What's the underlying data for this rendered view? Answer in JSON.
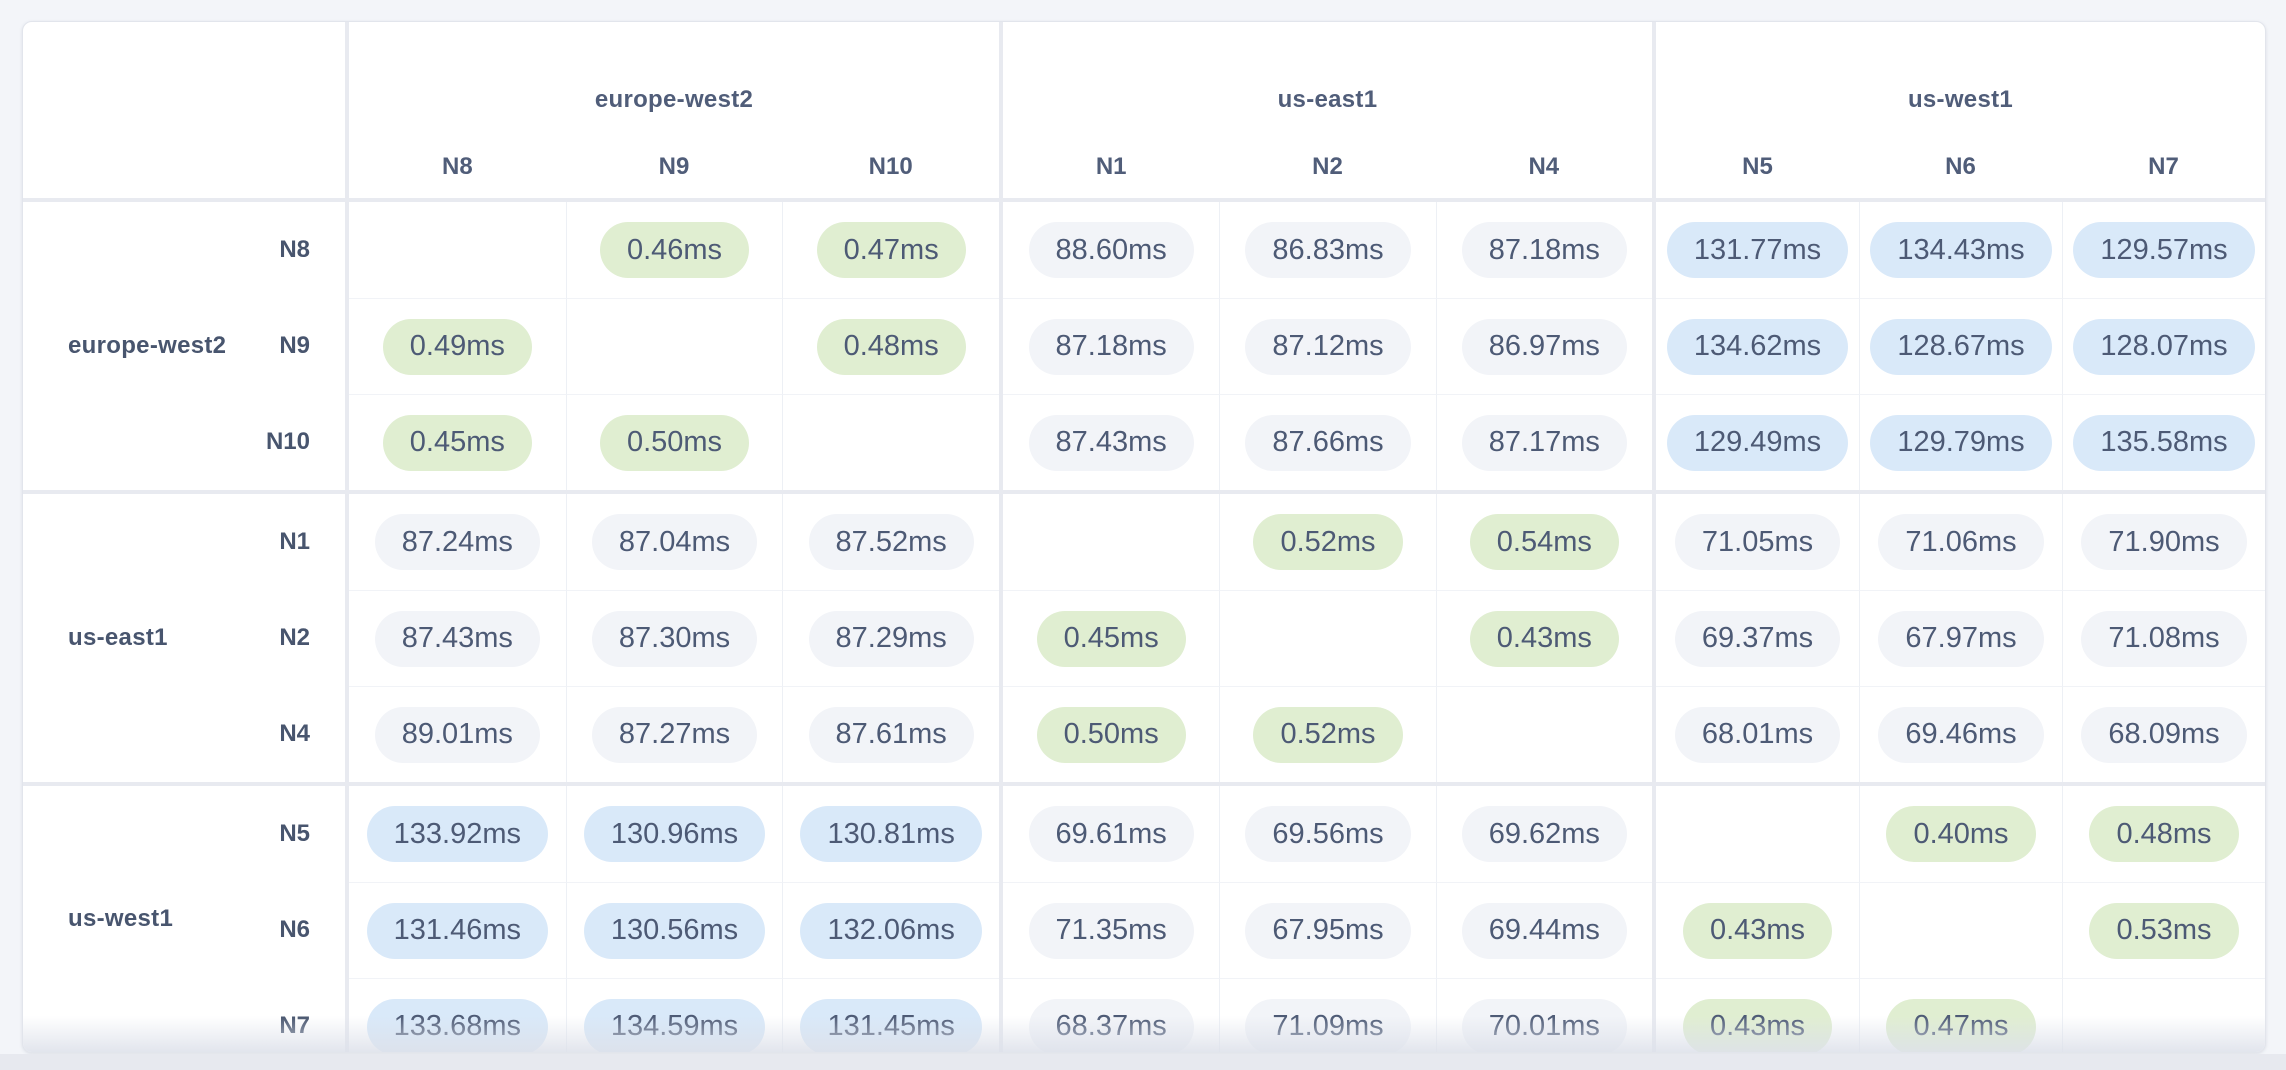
{
  "page": {
    "background": "#f3f5f9"
  },
  "chart_data": {
    "type": "heatmap",
    "unit": "ms",
    "col_groups": [
      {
        "region": "europe-west2",
        "nodes": [
          "N8",
          "N9",
          "N10"
        ]
      },
      {
        "region": "us-east1",
        "nodes": [
          "N1",
          "N2",
          "N4"
        ]
      },
      {
        "region": "us-west1",
        "nodes": [
          "N5",
          "N6",
          "N7"
        ]
      }
    ],
    "row_groups": [
      {
        "region": "europe-west2",
        "nodes": [
          "N8",
          "N9",
          "N10"
        ]
      },
      {
        "region": "us-east1",
        "nodes": [
          "N1",
          "N2",
          "N4"
        ]
      },
      {
        "region": "us-west1",
        "nodes": [
          "N5",
          "N6",
          "N7"
        ]
      }
    ],
    "row_nodes": [
      "N8",
      "N9",
      "N10",
      "N1",
      "N2",
      "N4",
      "N5",
      "N6",
      "N7"
    ],
    "col_nodes": [
      "N8",
      "N9",
      "N10",
      "N1",
      "N2",
      "N4",
      "N5",
      "N6",
      "N7"
    ],
    "values_ms": [
      [
        null,
        0.46,
        0.47,
        88.6,
        86.83,
        87.18,
        131.77,
        134.43,
        129.57
      ],
      [
        0.49,
        null,
        0.48,
        87.18,
        87.12,
        86.97,
        134.62,
        128.67,
        128.07
      ],
      [
        0.45,
        0.5,
        null,
        87.43,
        87.66,
        87.17,
        129.49,
        129.79,
        135.58
      ],
      [
        87.24,
        87.04,
        87.52,
        null,
        0.52,
        0.54,
        71.05,
        71.06,
        71.9
      ],
      [
        87.43,
        87.3,
        87.29,
        0.45,
        null,
        0.43,
        69.37,
        67.97,
        71.08
      ],
      [
        89.01,
        87.27,
        87.61,
        0.5,
        0.52,
        null,
        68.01,
        69.46,
        68.09
      ],
      [
        133.92,
        130.96,
        130.81,
        69.61,
        69.56,
        69.62,
        null,
        0.4,
        0.48
      ],
      [
        131.46,
        130.56,
        132.06,
        71.35,
        67.95,
        69.44,
        0.43,
        null,
        0.53
      ],
      [
        133.68,
        134.59,
        131.45,
        68.37,
        71.09,
        70.01,
        0.43,
        0.47,
        null
      ]
    ],
    "display": [
      [
        "",
        "0.46ms",
        "0.47ms",
        "88.60ms",
        "86.83ms",
        "87.18ms",
        "131.77ms",
        "134.43ms",
        "129.57ms"
      ],
      [
        "0.49ms",
        "",
        "0.48ms",
        "87.18ms",
        "87.12ms",
        "86.97ms",
        "134.62ms",
        "128.67ms",
        "128.07ms"
      ],
      [
        "0.45ms",
        "0.50ms",
        "",
        "87.43ms",
        "87.66ms",
        "87.17ms",
        "129.49ms",
        "129.79ms",
        "135.58ms"
      ],
      [
        "87.24ms",
        "87.04ms",
        "87.52ms",
        "",
        "0.52ms",
        "0.54ms",
        "71.05ms",
        "71.06ms",
        "71.90ms"
      ],
      [
        "87.43ms",
        "87.30ms",
        "87.29ms",
        "0.45ms",
        "",
        "0.43ms",
        "69.37ms",
        "67.97ms",
        "71.08ms"
      ],
      [
        "89.01ms",
        "87.27ms",
        "87.61ms",
        "0.50ms",
        "0.52ms",
        "",
        "68.01ms",
        "69.46ms",
        "68.09ms"
      ],
      [
        "133.92ms",
        "130.96ms",
        "130.81ms",
        "69.61ms",
        "69.56ms",
        "69.62ms",
        "",
        "0.40ms",
        "0.48ms"
      ],
      [
        "131.46ms",
        "130.56ms",
        "132.06ms",
        "71.35ms",
        "67.95ms",
        "69.44ms",
        "0.43ms",
        "",
        "0.53ms"
      ],
      [
        "133.68ms",
        "134.59ms",
        "131.45ms",
        "68.37ms",
        "71.09ms",
        "70.01ms",
        "0.43ms",
        "0.47ms",
        ""
      ]
    ],
    "colors": {
      "low_intra_region": "#e0eed1",
      "mid": "#f2f4f8",
      "high": "#d9e9f9",
      "pill_text": "#4d5a75",
      "header_text": "#505d79"
    },
    "thresholds_ms": {
      "low_below": 1,
      "high_at_or_above": 100
    },
    "legend_position": "none",
    "grid": "group-separated"
  }
}
